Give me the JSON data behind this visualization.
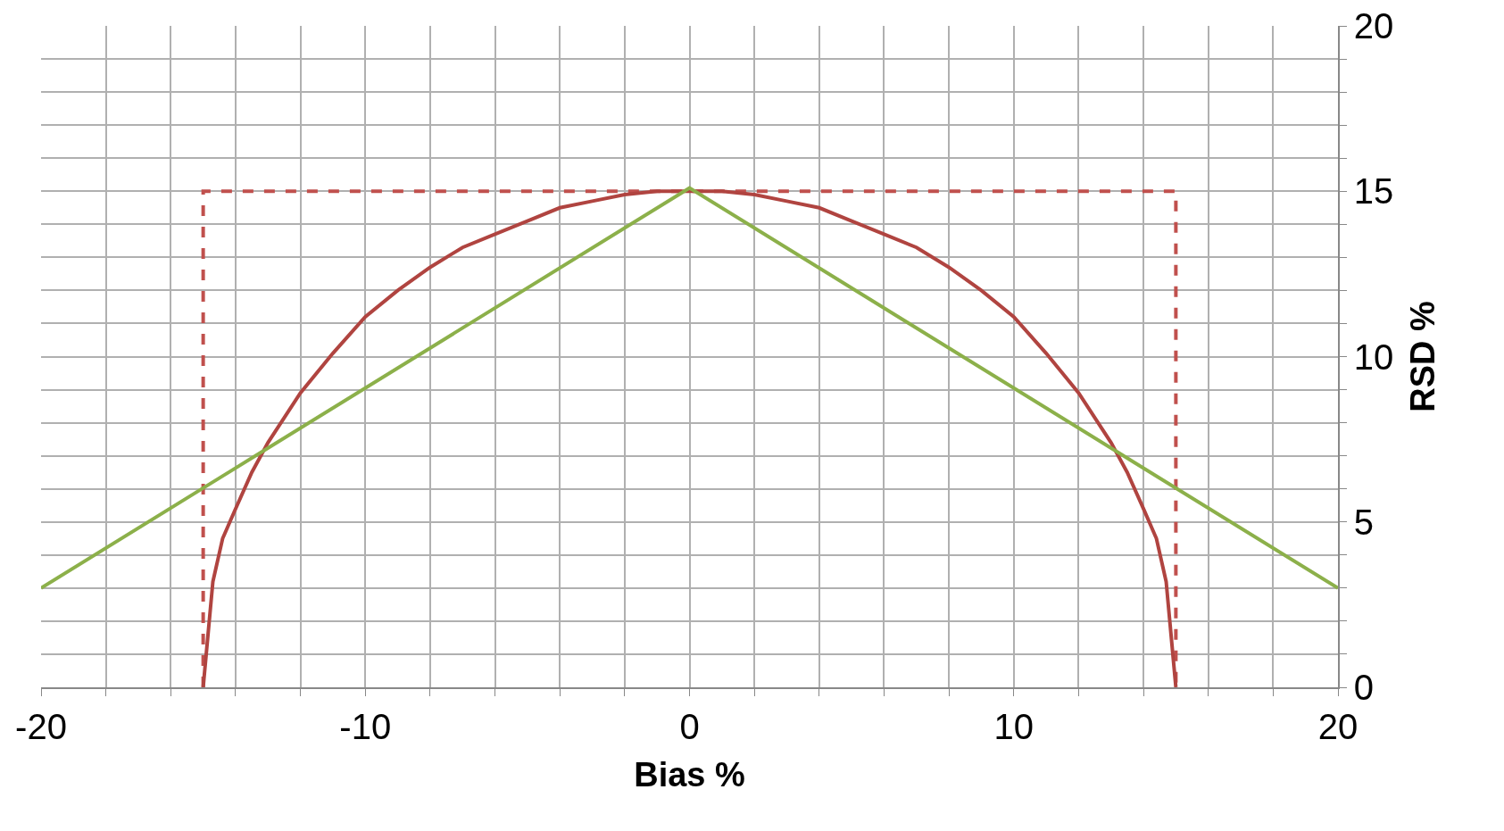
{
  "chart_data": {
    "type": "line",
    "xlabel": "Bias %",
    "ylabel": "RSD %",
    "xlim": [
      -20,
      20
    ],
    "ylim": [
      0,
      20
    ],
    "xticks": [
      -20,
      {
        "value": -18,
        "label": null
      },
      {
        "value": -16,
        "label": null
      },
      {
        "value": -14,
        "label": null
      },
      {
        "value": -12,
        "label": null
      },
      -10,
      {
        "value": -8,
        "label": null
      },
      {
        "value": -6,
        "label": null
      },
      {
        "value": -4,
        "label": null
      },
      {
        "value": -2,
        "label": null
      },
      0,
      {
        "value": 2,
        "label": null
      },
      {
        "value": 4,
        "label": null
      },
      {
        "value": 6,
        "label": null
      },
      {
        "value": 8,
        "label": null
      },
      10,
      {
        "value": 12,
        "label": null
      },
      {
        "value": 14,
        "label": null
      },
      {
        "value": 16,
        "label": null
      },
      {
        "value": 18,
        "label": null
      },
      20
    ],
    "yticks": [
      0,
      {
        "value": 1,
        "label": null
      },
      {
        "value": 2,
        "label": null
      },
      {
        "value": 3,
        "label": null
      },
      {
        "value": 4,
        "label": null
      },
      5,
      {
        "value": 6,
        "label": null
      },
      {
        "value": 7,
        "label": null
      },
      {
        "value": 8,
        "label": null
      },
      {
        "value": 9,
        "label": null
      },
      10,
      {
        "value": 11,
        "label": null
      },
      {
        "value": 12,
        "label": null
      },
      {
        "value": 13,
        "label": null
      },
      {
        "value": 14,
        "label": null
      },
      15,
      {
        "value": 16,
        "label": null
      },
      {
        "value": 17,
        "label": null
      },
      {
        "value": 18,
        "label": null
      },
      {
        "value": 19,
        "label": null
      },
      20
    ],
    "grid": true,
    "legend": false,
    "marker": "none",
    "series": [
      {
        "color": "#c0504d",
        "line_style": "dashed",
        "x": [
          -15,
          -15,
          15,
          15
        ],
        "values": [
          0,
          15,
          15,
          0
        ]
      },
      {
        "color": "#b04440",
        "line_style": "solid",
        "x": [
          -15,
          -14.7,
          -14.4,
          -14,
          -13.5,
          -13,
          -12,
          -11,
          -10,
          -9,
          -8,
          -7,
          -6,
          -5,
          -4,
          -3,
          -2,
          -1,
          0,
          1,
          2,
          3,
          4,
          5,
          6,
          7,
          8,
          9,
          10,
          11,
          12,
          13,
          13.5,
          14,
          14.4,
          14.7,
          15
        ],
        "values": [
          0,
          3.2,
          4.5,
          5.4,
          6.5,
          7.4,
          8.9,
          10.1,
          11.2,
          12,
          12.7,
          13.3,
          13.7,
          14.1,
          14.5,
          14.7,
          14.9,
          15,
          15,
          15,
          14.9,
          14.7,
          14.5,
          14.1,
          13.7,
          13.3,
          12.7,
          12,
          11.2,
          10.1,
          8.9,
          7.4,
          6.5,
          5.4,
          4.5,
          3.2,
          0
        ]
      },
      {
        "color": "#8cb04a",
        "line_style": "solid",
        "x": [
          -20,
          0,
          20
        ],
        "values": [
          3,
          15.1,
          3
        ]
      }
    ]
  }
}
